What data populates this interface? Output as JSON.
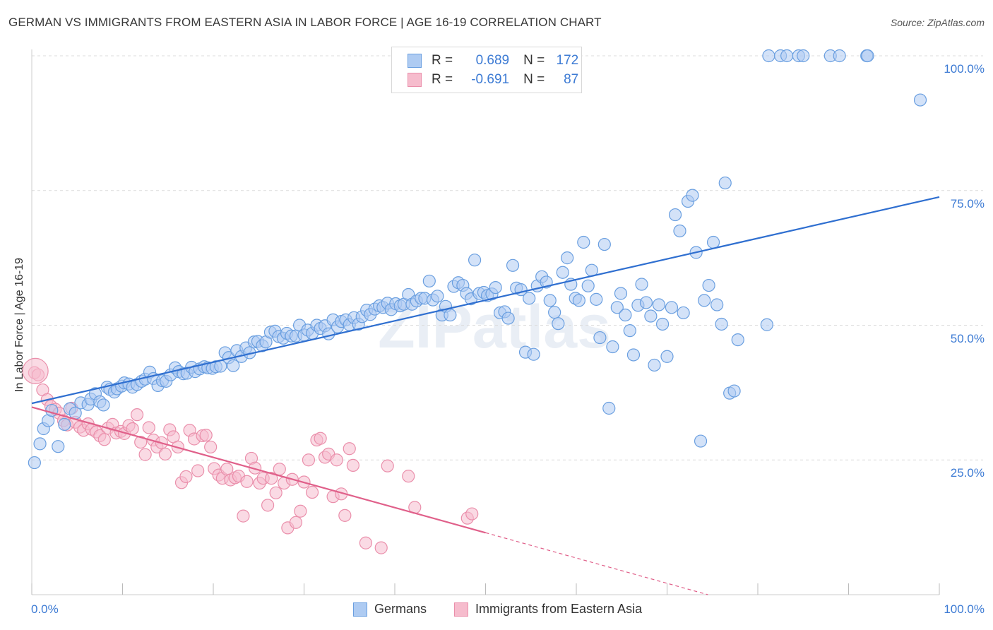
{
  "title": "GERMAN VS IMMIGRANTS FROM EASTERN ASIA IN LABOR FORCE | AGE 16-19 CORRELATION CHART",
  "source": "Source: ZipAtlas.com",
  "watermark": "ZIPatlas",
  "legend_top": {
    "rows": [
      {
        "r_label": "R =",
        "r_value": "0.689",
        "n_label": "N =",
        "n_value": "172"
      },
      {
        "r_label": "R =",
        "r_value": "-0.691",
        "n_label": "N =",
        "n_value": "87"
      }
    ]
  },
  "legend_bottom": {
    "items": [
      {
        "label": "Germans"
      },
      {
        "label": "Immigrants from Eastern Asia"
      }
    ]
  },
  "colors": {
    "blue_fill": "#aecbf2",
    "blue_stroke": "#6a9fe0",
    "blue_line": "#2f6fd0",
    "pink_fill": "#f6bccd",
    "pink_stroke": "#ea8fab",
    "pink_line": "#e0608a",
    "axis_text": "#3d7bd4",
    "grid": "#dcdcdc"
  },
  "chart_data": {
    "type": "scatter",
    "title": "GERMAN VS IMMIGRANTS FROM EASTERN ASIA IN LABOR FORCE | AGE 16-19 CORRELATION CHART",
    "xlabel": "",
    "ylabel": "In Labor Force | Age 16-19",
    "xlim": [
      0,
      100
    ],
    "ylim": [
      0,
      102
    ],
    "x_tick_labels": [
      "0.0%",
      "100.0%"
    ],
    "y_ticks": [
      25,
      50,
      75,
      100
    ],
    "y_tick_labels": [
      "25.0%",
      "50.0%",
      "75.0%",
      "100.0%"
    ],
    "grid": true,
    "legend": "top-center",
    "series": [
      {
        "name": "Germans",
        "r": 0.689,
        "n": 172,
        "trend": {
          "x": [
            0,
            100
          ],
          "y": [
            35.5,
            73.8
          ]
        },
        "points": [
          [
            0.3,
            24.5
          ],
          [
            0.9,
            28
          ],
          [
            1.3,
            30.8
          ],
          [
            1.8,
            32.3
          ],
          [
            2.2,
            34.2
          ],
          [
            2.9,
            27.5
          ],
          [
            3.6,
            31.6
          ],
          [
            4.2,
            34.5
          ],
          [
            4.8,
            33.7
          ],
          [
            5.4,
            35.6
          ],
          [
            6.2,
            35.3
          ],
          [
            6.5,
            36.3
          ],
          [
            7.0,
            37.3
          ],
          [
            7.5,
            35.8
          ],
          [
            7.9,
            35.2
          ],
          [
            8.3,
            38.5
          ],
          [
            8.6,
            38.1
          ],
          [
            9.1,
            37.6
          ],
          [
            9.4,
            38.2
          ],
          [
            9.9,
            38.7
          ],
          [
            10.2,
            39.3
          ],
          [
            10.7,
            39.1
          ],
          [
            11.1,
            38.5
          ],
          [
            11.6,
            39.0
          ],
          [
            12.1,
            39.6
          ],
          [
            12.5,
            40.0
          ],
          [
            13.0,
            41.3
          ],
          [
            13.4,
            40.1
          ],
          [
            13.9,
            38.8
          ],
          [
            14.4,
            39.7
          ],
          [
            14.8,
            39.6
          ],
          [
            15.3,
            40.8
          ],
          [
            15.8,
            42.1
          ],
          [
            16.2,
            41.4
          ],
          [
            16.7,
            41.0
          ],
          [
            17.1,
            41.1
          ],
          [
            17.6,
            42.2
          ],
          [
            18.0,
            41.4
          ],
          [
            18.5,
            41.9
          ],
          [
            19.0,
            42.3
          ],
          [
            19.4,
            42.1
          ],
          [
            19.9,
            42.0
          ],
          [
            20.3,
            42.3
          ],
          [
            20.8,
            42.4
          ],
          [
            21.3,
            44.9
          ],
          [
            21.7,
            44.0
          ],
          [
            22.2,
            42.5
          ],
          [
            22.6,
            45.3
          ],
          [
            23.1,
            44.2
          ],
          [
            23.6,
            45.8
          ],
          [
            24.0,
            44.9
          ],
          [
            24.5,
            46.9
          ],
          [
            24.9,
            47.0
          ],
          [
            25.4,
            46.2
          ],
          [
            25.8,
            46.9
          ],
          [
            26.3,
            48.7
          ],
          [
            26.8,
            48.9
          ],
          [
            27.2,
            47.9
          ],
          [
            27.7,
            47.6
          ],
          [
            28.1,
            48.5
          ],
          [
            28.6,
            48.0
          ],
          [
            29.1,
            48.0
          ],
          [
            29.5,
            50.0
          ],
          [
            30.0,
            48.2
          ],
          [
            30.4,
            49.1
          ],
          [
            30.9,
            48.5
          ],
          [
            31.4,
            50.0
          ],
          [
            31.8,
            49.4
          ],
          [
            32.3,
            49.9
          ],
          [
            32.7,
            48.4
          ],
          [
            33.2,
            51.0
          ],
          [
            33.7,
            49.7
          ],
          [
            34.1,
            50.7
          ],
          [
            34.6,
            51.0
          ],
          [
            35.0,
            50.1
          ],
          [
            35.5,
            51.4
          ],
          [
            36.0,
            50.2
          ],
          [
            36.4,
            51.6
          ],
          [
            36.9,
            52.8
          ],
          [
            37.3,
            52.0
          ],
          [
            37.8,
            53.0
          ],
          [
            38.3,
            53.6
          ],
          [
            38.7,
            53.3
          ],
          [
            39.2,
            54.1
          ],
          [
            39.6,
            52.9
          ],
          [
            40.1,
            54.0
          ],
          [
            40.6,
            53.6
          ],
          [
            41.0,
            53.9
          ],
          [
            41.5,
            55.7
          ],
          [
            41.9,
            53.9
          ],
          [
            42.4,
            54.5
          ],
          [
            42.9,
            55.0
          ],
          [
            43.3,
            55.0
          ],
          [
            43.8,
            58.2
          ],
          [
            44.2,
            54.7
          ],
          [
            44.7,
            55.4
          ],
          [
            45.2,
            51.9
          ],
          [
            45.6,
            53.5
          ],
          [
            46.1,
            51.9
          ],
          [
            46.5,
            57.2
          ],
          [
            47.0,
            57.9
          ],
          [
            47.5,
            57.4
          ],
          [
            47.9,
            55.9
          ],
          [
            48.4,
            54.9
          ],
          [
            48.8,
            62.1
          ],
          [
            49.3,
            55.9
          ],
          [
            49.8,
            56.1
          ],
          [
            50.2,
            55.5
          ],
          [
            50.7,
            55.8
          ],
          [
            51.1,
            57.0
          ],
          [
            51.6,
            52.3
          ],
          [
            52.1,
            52.5
          ],
          [
            52.5,
            51.3
          ],
          [
            53.0,
            61.1
          ],
          [
            53.4,
            56.9
          ],
          [
            53.9,
            56.6
          ],
          [
            54.4,
            45.0
          ],
          [
            54.8,
            55.0
          ],
          [
            55.3,
            44.6
          ],
          [
            55.7,
            57.3
          ],
          [
            56.2,
            59.0
          ],
          [
            56.7,
            58.0
          ],
          [
            57.1,
            54.6
          ],
          [
            57.6,
            52.4
          ],
          [
            58.0,
            50.3
          ],
          [
            58.5,
            59.8
          ],
          [
            59.0,
            62.5
          ],
          [
            59.4,
            57.6
          ],
          [
            59.9,
            55.0
          ],
          [
            60.3,
            54.6
          ],
          [
            60.8,
            65.4
          ],
          [
            61.3,
            57.3
          ],
          [
            61.7,
            60.2
          ],
          [
            62.2,
            54.8
          ],
          [
            62.6,
            47.7
          ],
          [
            63.1,
            65.0
          ],
          [
            63.6,
            34.6
          ],
          [
            64.0,
            46.0
          ],
          [
            64.5,
            53.3
          ],
          [
            64.9,
            55.9
          ],
          [
            65.4,
            51.9
          ],
          [
            65.9,
            49.0
          ],
          [
            66.3,
            44.5
          ],
          [
            66.8,
            53.7
          ],
          [
            67.2,
            57.6
          ],
          [
            67.7,
            54.2
          ],
          [
            68.2,
            51.7
          ],
          [
            68.6,
            42.6
          ],
          [
            69.1,
            53.8
          ],
          [
            69.5,
            50.2
          ],
          [
            70.0,
            44.2
          ],
          [
            70.5,
            53.3
          ],
          [
            70.9,
            70.5
          ],
          [
            71.4,
            67.5
          ],
          [
            71.8,
            52.3
          ],
          [
            72.3,
            73.0
          ],
          [
            72.8,
            74.1
          ],
          [
            73.2,
            63.5
          ],
          [
            73.7,
            28.5
          ],
          [
            74.1,
            54.6
          ],
          [
            74.6,
            57.4
          ],
          [
            75.1,
            65.4
          ],
          [
            75.5,
            53.8
          ],
          [
            76.0,
            50.2
          ],
          [
            76.4,
            76.4
          ],
          [
            76.9,
            37.4
          ],
          [
            77.4,
            37.8
          ],
          [
            77.8,
            47.3
          ],
          [
            81.0,
            50.1
          ],
          [
            81.2,
            100.0
          ],
          [
            82.5,
            100.0
          ],
          [
            83.2,
            100.0
          ],
          [
            84.5,
            100.0
          ],
          [
            85.0,
            100.0
          ],
          [
            88.0,
            100.0
          ],
          [
            89.0,
            100.0
          ],
          [
            92.0,
            100.0
          ],
          [
            92.1,
            100.0
          ],
          [
            97.9,
            91.8
          ]
        ]
      },
      {
        "name": "Immigrants from Eastern Asia",
        "r": -0.691,
        "n": 87,
        "trend": {
          "x": [
            0,
            50
          ],
          "y": [
            34.8,
            11.5
          ]
        },
        "trend_dashed": {
          "x": [
            50,
            74.5
          ],
          "y": [
            11.5,
            0
          ]
        },
        "points": [
          [
            0.3,
            41.2
          ],
          [
            0.7,
            40.8
          ],
          [
            1.2,
            38.0
          ],
          [
            1.7,
            36.2
          ],
          [
            2.1,
            35.0
          ],
          [
            2.6,
            34.4
          ],
          [
            3.0,
            33.7
          ],
          [
            3.5,
            32.3
          ],
          [
            3.9,
            31.5
          ],
          [
            4.4,
            34.6
          ],
          [
            4.8,
            32.0
          ],
          [
            5.3,
            31.1
          ],
          [
            5.7,
            30.5
          ],
          [
            6.2,
            31.7
          ],
          [
            6.6,
            30.7
          ],
          [
            7.1,
            30.2
          ],
          [
            7.5,
            29.5
          ],
          [
            8.0,
            28.8
          ],
          [
            8.4,
            30.9
          ],
          [
            8.9,
            31.6
          ],
          [
            9.3,
            30.0
          ],
          [
            9.8,
            30.3
          ],
          [
            10.2,
            29.9
          ],
          [
            10.7,
            31.4
          ],
          [
            11.1,
            30.8
          ],
          [
            11.6,
            33.4
          ],
          [
            12.0,
            28.3
          ],
          [
            12.5,
            26.0
          ],
          [
            12.9,
            31.0
          ],
          [
            13.4,
            28.7
          ],
          [
            13.8,
            27.4
          ],
          [
            14.3,
            28.2
          ],
          [
            14.7,
            26.1
          ],
          [
            15.2,
            30.6
          ],
          [
            15.6,
            29.3
          ],
          [
            16.1,
            27.4
          ],
          [
            16.5,
            20.8
          ],
          [
            17.0,
            21.9
          ],
          [
            17.4,
            30.5
          ],
          [
            17.9,
            28.9
          ],
          [
            18.3,
            23.0
          ],
          [
            18.8,
            29.5
          ],
          [
            19.2,
            29.6
          ],
          [
            19.7,
            27.4
          ],
          [
            20.1,
            23.4
          ],
          [
            20.6,
            22.2
          ],
          [
            21.0,
            21.6
          ],
          [
            21.5,
            23.3
          ],
          [
            21.9,
            21.3
          ],
          [
            22.4,
            21.7
          ],
          [
            22.8,
            22.0
          ],
          [
            23.3,
            14.6
          ],
          [
            23.7,
            21.0
          ],
          [
            24.2,
            25.3
          ],
          [
            24.6,
            23.5
          ],
          [
            25.1,
            20.7
          ],
          [
            25.5,
            21.6
          ],
          [
            26.0,
            16.6
          ],
          [
            26.4,
            21.6
          ],
          [
            26.9,
            18.9
          ],
          [
            27.3,
            23.3
          ],
          [
            27.8,
            20.7
          ],
          [
            28.2,
            12.4
          ],
          [
            28.7,
            21.4
          ],
          [
            29.1,
            13.4
          ],
          [
            29.6,
            15.5
          ],
          [
            30.0,
            20.9
          ],
          [
            30.5,
            25.0
          ],
          [
            30.9,
            19.0
          ],
          [
            31.4,
            28.7
          ],
          [
            31.8,
            29.0
          ],
          [
            32.3,
            25.5
          ],
          [
            32.7,
            26.1
          ],
          [
            33.2,
            18.2
          ],
          [
            33.6,
            25.0
          ],
          [
            34.1,
            18.7
          ],
          [
            34.5,
            14.7
          ],
          [
            35.0,
            27.1
          ],
          [
            35.4,
            24.0
          ],
          [
            36.8,
            9.6
          ],
          [
            38.5,
            8.7
          ],
          [
            39.2,
            23.9
          ],
          [
            41.5,
            22.0
          ],
          [
            42.2,
            16.2
          ],
          [
            48.0,
            14.2
          ],
          [
            48.5,
            15.0
          ]
        ]
      }
    ]
  }
}
